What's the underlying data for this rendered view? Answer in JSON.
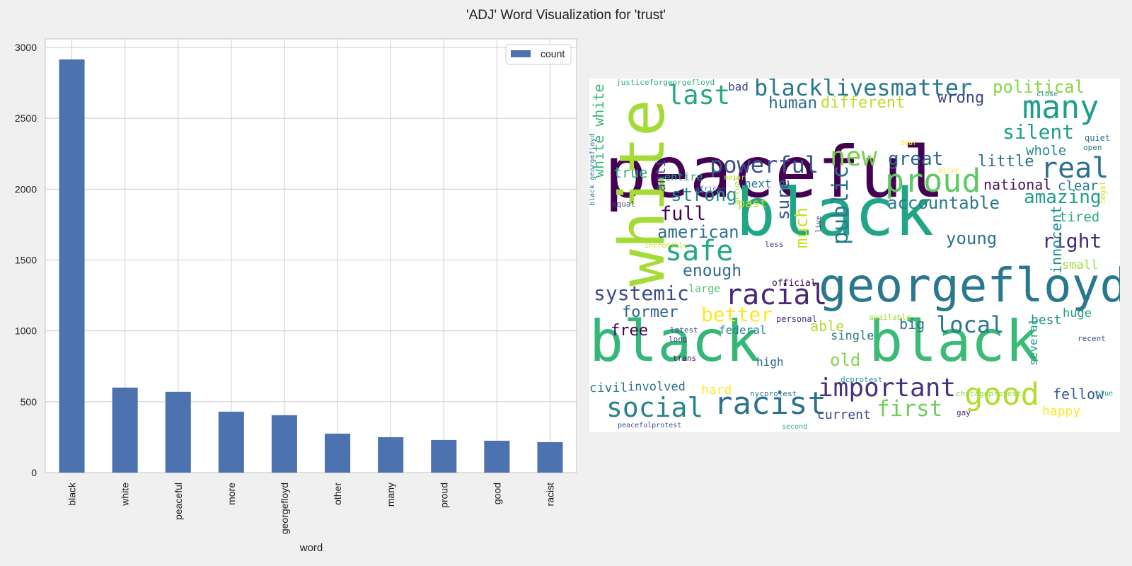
{
  "figure": {
    "title": "'ADJ' Word Visualization for 'trust'"
  },
  "chart_data": [
    {
      "type": "bar",
      "categories": [
        "black",
        "white",
        "peaceful",
        "more",
        "georgefloyd",
        "other",
        "many",
        "proud",
        "good",
        "racist"
      ],
      "series": [
        {
          "name": "count",
          "values": [
            2915,
            600,
            570,
            430,
            405,
            275,
            250,
            230,
            225,
            215
          ],
          "color": "#4c72b0"
        }
      ],
      "xlabel": "word",
      "ylabel": "",
      "ylim": [
        0,
        3060
      ],
      "yticks": [
        0,
        500,
        1000,
        1500,
        2000,
        2500,
        3000
      ],
      "grid": true,
      "legend_position": "top-right"
    },
    {
      "type": "wordcloud",
      "background": "#ffffff",
      "colormap": "viridis",
      "words": [
        {
          "text": "peaceful",
          "color": "#440154"
        },
        {
          "text": "black",
          "color": "#21a685"
        },
        {
          "text": "white",
          "color": "#a5db36"
        },
        {
          "text": "georgefloyd",
          "color": "#2a788e"
        },
        {
          "text": "black",
          "color": "#35b779"
        },
        {
          "text": "black",
          "color": "#3bbb75"
        },
        {
          "text": "many",
          "color": "#1f9e89"
        },
        {
          "text": "proud",
          "color": "#5ec962"
        },
        {
          "text": "racist",
          "color": "#2c728e"
        },
        {
          "text": "good",
          "color": "#b2dd2d"
        },
        {
          "text": "blacklivesmatter",
          "color": "#2a788e"
        },
        {
          "text": "powerful",
          "color": "#3b528b"
        },
        {
          "text": "safe",
          "color": "#22a884"
        },
        {
          "text": "racial",
          "color": "#482878"
        },
        {
          "text": "social",
          "color": "#26828e"
        },
        {
          "text": "important",
          "color": "#46327e"
        },
        {
          "text": "real",
          "color": "#2c728e"
        },
        {
          "text": "last",
          "color": "#22a884"
        },
        {
          "text": "new",
          "color": "#7ad151"
        },
        {
          "text": "local",
          "color": "#2a788e"
        },
        {
          "text": "first",
          "color": "#6ece58"
        },
        {
          "text": "systemic",
          "color": "#3e4a89"
        },
        {
          "text": "silent",
          "color": "#1f9e89"
        },
        {
          "text": "political",
          "color": "#86d549"
        },
        {
          "text": "great",
          "color": "#31688e"
        },
        {
          "text": "public",
          "color": "#2a788e"
        },
        {
          "text": "better",
          "color": "#fde725"
        },
        {
          "text": "amazing",
          "color": "#1f9e89"
        },
        {
          "text": "strong",
          "color": "#228c8d"
        },
        {
          "text": "accountable",
          "color": "#2a788e"
        },
        {
          "text": "full",
          "color": "#440154"
        },
        {
          "text": "american",
          "color": "#2d708e"
        },
        {
          "text": "much",
          "color": "#c8e020"
        },
        {
          "text": "sure",
          "color": "#3b528b"
        },
        {
          "text": "young",
          "color": "#2c728e"
        },
        {
          "text": "right",
          "color": "#472d7b"
        },
        {
          "text": "enough",
          "color": "#31688e"
        },
        {
          "text": "human",
          "color": "#2f6c8e"
        },
        {
          "text": "different",
          "color": "#bade28"
        },
        {
          "text": "wrong",
          "color": "#414487"
        },
        {
          "text": "little",
          "color": "#2c728e"
        },
        {
          "text": "national",
          "color": "#471164"
        },
        {
          "text": "old",
          "color": "#84d44b"
        },
        {
          "text": "white white",
          "color": "#38b977"
        },
        {
          "text": "former",
          "color": "#31688e"
        },
        {
          "text": "innocent",
          "color": "#21918c"
        },
        {
          "text": "free",
          "color": "#440154"
        },
        {
          "text": "true",
          "color": "#2db27d"
        },
        {
          "text": "whole",
          "color": "#228c8d"
        },
        {
          "text": "clear",
          "color": "#287c8e"
        },
        {
          "text": "anti",
          "color": "#3b528b"
        },
        {
          "text": "tired",
          "color": "#29af7f"
        },
        {
          "text": "fellow",
          "color": "#38588c"
        },
        {
          "text": "able",
          "color": "#addc30"
        },
        {
          "text": "big",
          "color": "#2c728e"
        },
        {
          "text": "best",
          "color": "#21918c"
        },
        {
          "text": "happy",
          "color": "#fde725"
        },
        {
          "text": "hard",
          "color": "#fde725"
        },
        {
          "text": "civil",
          "color": "#2a788e"
        },
        {
          "text": "involved",
          "color": "#2c728e"
        },
        {
          "text": "current",
          "color": "#3e4a89"
        },
        {
          "text": "several",
          "color": "#1f9e89"
        },
        {
          "text": "single",
          "color": "#2a788e"
        },
        {
          "text": "federal",
          "color": "#25838e"
        },
        {
          "text": "huge",
          "color": "#1f9e89"
        },
        {
          "text": "small",
          "color": "#a0da39"
        },
        {
          "text": "entire",
          "color": "#22a884"
        },
        {
          "text": "next",
          "color": "#2c728e"
        },
        {
          "text": "past",
          "color": "#c8e020"
        },
        {
          "text": "bad",
          "color": "#414487"
        },
        {
          "text": "high",
          "color": "#31688e"
        },
        {
          "text": "large",
          "color": "#4ac16d"
        },
        {
          "text": "justiceforgeorgefloyd",
          "color": "#2db27d"
        },
        {
          "text": "close",
          "color": "#26828e"
        },
        {
          "text": "quiet",
          "color": "#2a788e"
        },
        {
          "text": "open",
          "color": "#2c728e"
        },
        {
          "text": "dear",
          "color": "#fde725"
        },
        {
          "text": "alive",
          "color": "#fde725"
        },
        {
          "text": "major",
          "color": "#bade28"
        },
        {
          "text": "african",
          "color": "#31688e"
        },
        {
          "text": "equal",
          "color": "#3e4a89"
        },
        {
          "text": "actual",
          "color": "#a5db36"
        },
        {
          "text": "incredible",
          "color": "#c2df23"
        },
        {
          "text": "black georgefloyd",
          "color": "#2a788e"
        },
        {
          "text": "less",
          "color": "#443a83"
        },
        {
          "text": "live",
          "color": "#482878"
        },
        {
          "text": "legal",
          "color": "#d2e21b"
        },
        {
          "text": "official",
          "color": "#440154"
        },
        {
          "text": "personal",
          "color": "#472d7b"
        },
        {
          "text": "available",
          "color": "#a5db36"
        },
        {
          "text": "latest",
          "color": "#3e4a89"
        },
        {
          "text": "long",
          "color": "#443983"
        },
        {
          "text": "trans",
          "color": "#440154"
        },
        {
          "text": "dcprotest",
          "color": "#21918c"
        },
        {
          "text": "nycprotest",
          "color": "#2a788e"
        },
        {
          "text": "chicagoprotest",
          "color": "#8fd744"
        },
        {
          "text": "gay",
          "color": "#482878"
        },
        {
          "text": "blue",
          "color": "#1f9e89"
        },
        {
          "text": "recent",
          "color": "#3b528b"
        },
        {
          "text": "peacefulprotest",
          "color": "#3b528b"
        },
        {
          "text": "second",
          "color": "#2db27d"
        }
      ]
    }
  ]
}
